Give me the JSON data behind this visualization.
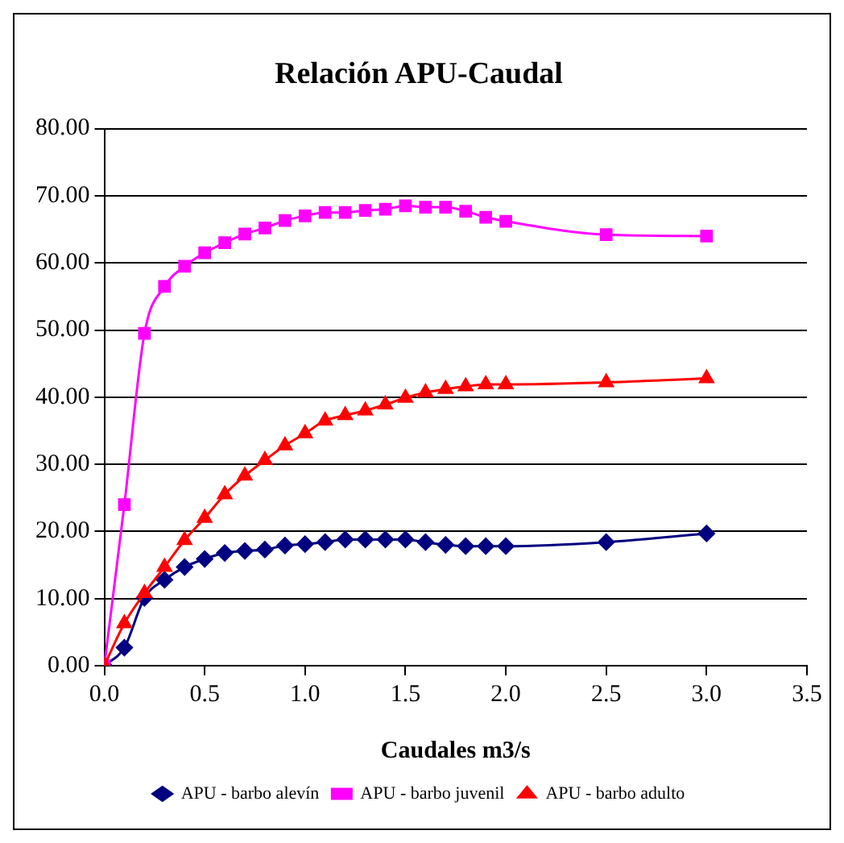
{
  "chart_data": {
    "type": "line",
    "title": "Relación APU-Caudal",
    "xlabel": "Caudales m3/s",
    "xlim": [
      0,
      3.5
    ],
    "xticks": [
      {
        "value": 0,
        "label": "0.0"
      },
      {
        "value": 0.5,
        "label": "0.5"
      },
      {
        "value": 1,
        "label": "1.0"
      },
      {
        "value": 1.5,
        "label": "1.5"
      },
      {
        "value": 2,
        "label": "2.0"
      },
      {
        "value": 2.5,
        "label": "2.5"
      },
      {
        "value": 3,
        "label": "3.0"
      },
      {
        "value": 3.5,
        "label": "3.5"
      }
    ],
    "ylim": [
      0,
      80
    ],
    "yticks": [
      {
        "value": 0,
        "label": "0.00"
      },
      {
        "value": 10,
        "label": "10.00"
      },
      {
        "value": 20,
        "label": "20.00"
      },
      {
        "value": 30,
        "label": "30.00"
      },
      {
        "value": 40,
        "label": "40.00"
      },
      {
        "value": 50,
        "label": "50.00"
      },
      {
        "value": 60,
        "label": "60.00"
      },
      {
        "value": 70,
        "label": "70.00"
      },
      {
        "value": 80,
        "label": "80.00"
      }
    ],
    "x": [
      0,
      0.1,
      0.2,
      0.3,
      0.4,
      0.5,
      0.6,
      0.7,
      0.8,
      0.9,
      1.0,
      1.1,
      1.2,
      1.3,
      1.4,
      1.5,
      1.6,
      1.7,
      1.8,
      1.9,
      2.0,
      2.5,
      3.0
    ],
    "grid": "y",
    "legend": "bottom",
    "series": [
      {
        "name": "APU - barbo alevín",
        "color": "#000080",
        "marker": "diamond",
        "values": [
          0,
          2.7,
          10.1,
          12.8,
          14.7,
          15.9,
          16.8,
          17.1,
          17.3,
          17.9,
          18.1,
          18.4,
          18.8,
          18.8,
          18.8,
          18.8,
          18.4,
          18.0,
          17.8,
          17.8,
          17.8,
          18.4,
          19.7
        ]
      },
      {
        "name": "APU - barbo juvenil",
        "color": "#ff00ff",
        "marker": "square",
        "values": [
          0,
          24,
          49.5,
          56.5,
          59.5,
          61.5,
          63,
          64.3,
          65.2,
          66.3,
          67,
          67.5,
          67.5,
          67.8,
          68,
          68.5,
          68.3,
          68.3,
          67.7,
          66.8,
          66.2,
          64.2,
          64
        ]
      },
      {
        "name": "APU - barbo adulto",
        "color": "#ff0000",
        "marker": "triangle",
        "values": [
          0,
          6.3,
          10.8,
          14.7,
          18.7,
          22,
          25.5,
          28.3,
          30.6,
          32.8,
          34.6,
          36.5,
          37.3,
          38.0,
          38.9,
          39.9,
          40.7,
          41.2,
          41.6,
          41.9,
          41.9,
          42.2,
          42.8
        ]
      }
    ]
  }
}
